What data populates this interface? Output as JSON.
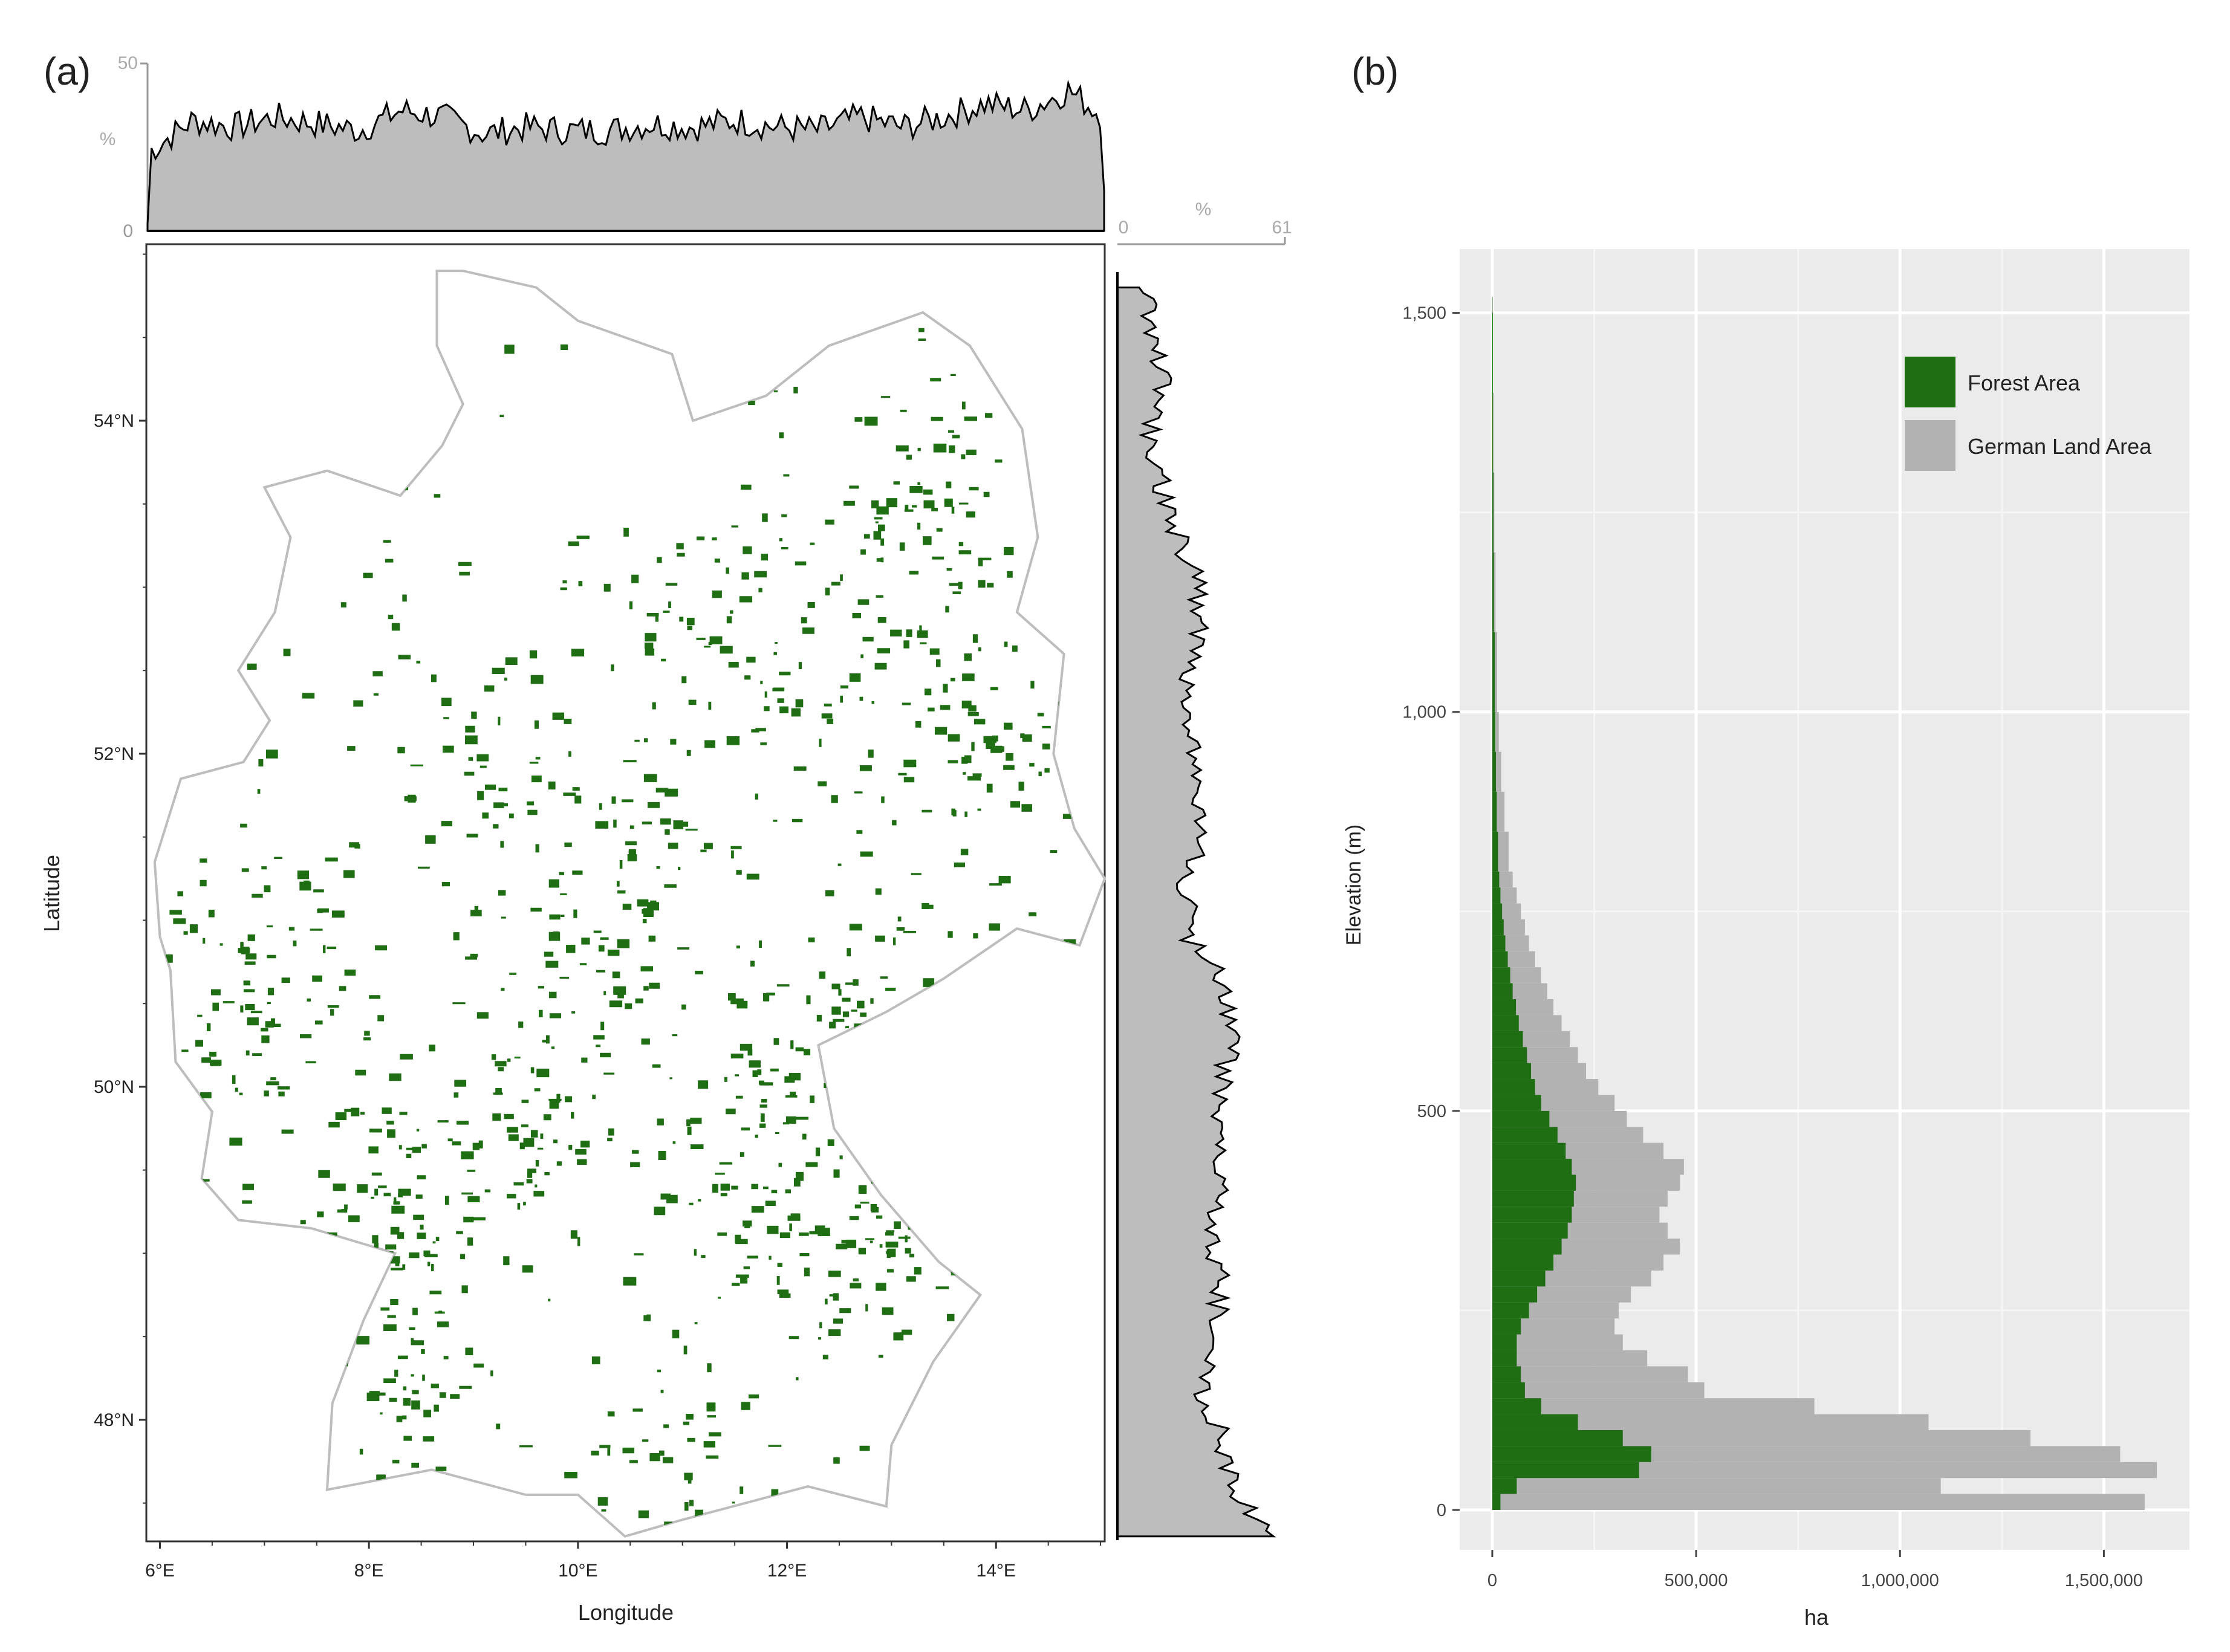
{
  "panel_a": {
    "label": "(a)",
    "xlabel": "Longitude",
    "ylabel": "Latitude",
    "top_hist": {
      "max_label": "50",
      "min_label": "0",
      "unit_label": "%"
    },
    "right_hist": {
      "min_label": "0",
      "max_label": "61",
      "unit_label": "%"
    },
    "map_colors": {
      "forest": "#1f6e14",
      "outline": "#bdbdbd",
      "land": "#ffffff"
    }
  },
  "panel_b": {
    "label": "(b)",
    "legend": {
      "forest": "Forest Area",
      "land": "German Land Area"
    }
  },
  "chart_data": [
    {
      "type": "area",
      "panel": "a-top",
      "xlabel": "Longitude",
      "ylabel": "%",
      "x_tick_labels": [
        "6°E",
        "8°E",
        "10°E",
        "12°E",
        "14°E"
      ],
      "x_ticks": [
        6,
        8,
        10,
        12,
        14
      ],
      "xlim": [
        5.87,
        15.04
      ],
      "ylim": [
        0,
        50
      ],
      "y_tick_labels": [
        "0",
        "50"
      ],
      "x": [
        5.9,
        6.3,
        6.7,
        7.1,
        7.5,
        7.9,
        8.3,
        8.7,
        9.1,
        9.5,
        9.9,
        10.3,
        10.7,
        11.1,
        11.5,
        11.9,
        12.3,
        12.7,
        13.1,
        13.5,
        13.9,
        14.3,
        14.7,
        15.0
      ],
      "values": [
        24,
        33,
        31,
        34,
        32,
        30,
        36,
        34,
        29,
        31,
        30,
        30,
        32,
        31,
        33,
        31,
        30,
        34,
        31,
        34,
        38,
        36,
        42,
        35
      ],
      "fill": "#bdbdbd",
      "line": "#000000"
    },
    {
      "type": "area",
      "panel": "a-right",
      "xlabel": "%",
      "ylabel": "Latitude",
      "y_tick_labels": [
        "48°N",
        "50°N",
        "52°N",
        "54°N"
      ],
      "y_ticks": [
        48,
        50,
        52,
        54
      ],
      "ylim": [
        47.27,
        55.06
      ],
      "xlim": [
        0,
        61
      ],
      "x_tick_labels": [
        "0",
        "61"
      ],
      "lat": [
        47.3,
        47.6,
        47.9,
        48.2,
        48.5,
        48.8,
        49.1,
        49.4,
        49.7,
        50.0,
        50.3,
        50.6,
        50.9,
        51.2,
        51.5,
        51.8,
        52.1,
        52.4,
        52.7,
        53.0,
        53.3,
        53.6,
        53.9,
        54.2,
        54.5,
        54.8
      ],
      "values": [
        55,
        42,
        38,
        30,
        35,
        38,
        35,
        37,
        36,
        38,
        42,
        40,
        26,
        25,
        32,
        30,
        28,
        26,
        29,
        30,
        22,
        16,
        12,
        16,
        14,
        10
      ],
      "fill": "#bdbdbd",
      "line": "#000000"
    },
    {
      "type": "bar",
      "panel": "b",
      "orientation": "horizontal",
      "xlabel": "ha",
      "ylabel": "Elevation (m)",
      "x_tick_labels": [
        "0",
        "500,000",
        "1,000,000",
        "1,500,000"
      ],
      "x_ticks": [
        0,
        500000,
        1000000,
        1500000
      ],
      "y_tick_labels": [
        "0",
        "500",
        "1,000",
        "1,500"
      ],
      "y_ticks": [
        0,
        500,
        1000,
        1500
      ],
      "xlim": [
        -80000,
        1710000
      ],
      "ylim": [
        -50,
        1580
      ],
      "bin_width": 20,
      "elevation": [
        0,
        20,
        40,
        60,
        80,
        100,
        120,
        140,
        160,
        180,
        200,
        220,
        240,
        260,
        280,
        300,
        320,
        340,
        360,
        380,
        400,
        420,
        440,
        460,
        480,
        500,
        520,
        540,
        560,
        580,
        600,
        620,
        640,
        660,
        680,
        700,
        720,
        740,
        760,
        780,
        800,
        850,
        900,
        950,
        1000,
        1100,
        1200,
        1300,
        1400,
        1500
      ],
      "series": [
        {
          "name": "German Land Area",
          "color": "#b2b2b2",
          "values": [
            1600000,
            1100000,
            1630000,
            1540000,
            1320000,
            1070000,
            790000,
            520000,
            480000,
            380000,
            320000,
            300000,
            310000,
            340000,
            390000,
            420000,
            460000,
            430000,
            410000,
            430000,
            460000,
            470000,
            420000,
            370000,
            330000,
            300000,
            260000,
            230000,
            210000,
            190000,
            170000,
            150000,
            135000,
            120000,
            105000,
            90000,
            80000,
            70000,
            60000,
            50000,
            40000,
            30000,
            22000,
            16000,
            12000,
            8000,
            5000,
            3000,
            2000,
            1000
          ]
        },
        {
          "name": "Forest Area",
          "color": "#1f6e14",
          "values": [
            20000,
            60000,
            360000,
            390000,
            320000,
            210000,
            120000,
            80000,
            70000,
            60000,
            60000,
            70000,
            90000,
            110000,
            130000,
            150000,
            170000,
            185000,
            195000,
            200000,
            205000,
            195000,
            180000,
            160000,
            140000,
            120000,
            105000,
            95000,
            85000,
            75000,
            65000,
            58000,
            50000,
            44000,
            38000,
            32000,
            28000,
            24000,
            20000,
            17000,
            14000,
            11000,
            9000,
            7000,
            6000,
            4000,
            3000,
            2000,
            1500,
            800
          ]
        }
      ],
      "legend_position": "top-right",
      "grid": true,
      "background": "#ebebeb"
    }
  ]
}
